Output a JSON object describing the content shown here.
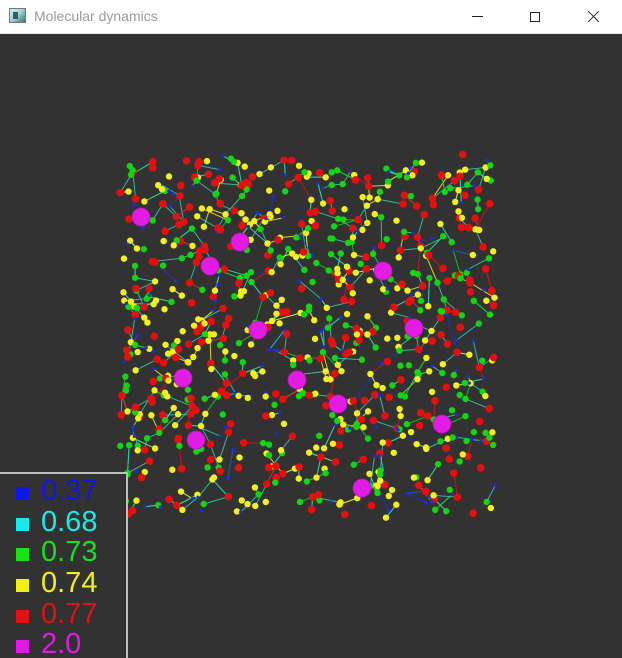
{
  "window": {
    "title": "Molecular dynamics",
    "controls": {
      "minimize": "minimize-icon",
      "maximize": "maximize-icon",
      "close": "close-icon"
    }
  },
  "scene": {
    "background": "#323232",
    "bond_color": "#2fd0b0",
    "atom_colors": {
      "blue": "#1a2fd6",
      "cyan": "#18e7ea",
      "green": "#11d611",
      "yellow": "#f3f01a",
      "red": "#e60f0f",
      "magenta": "#e21be5"
    }
  },
  "legend": {
    "items": [
      {
        "label": "0.37",
        "color": "#1015e8"
      },
      {
        "label": "0.68",
        "color": "#19e9ea"
      },
      {
        "label": "0.73",
        "color": "#16e316"
      },
      {
        "label": "0.74",
        "color": "#f2ee17"
      },
      {
        "label": "0.77",
        "color": "#e01212"
      },
      {
        "label": "2.0",
        "color": "#df19e6"
      }
    ]
  }
}
